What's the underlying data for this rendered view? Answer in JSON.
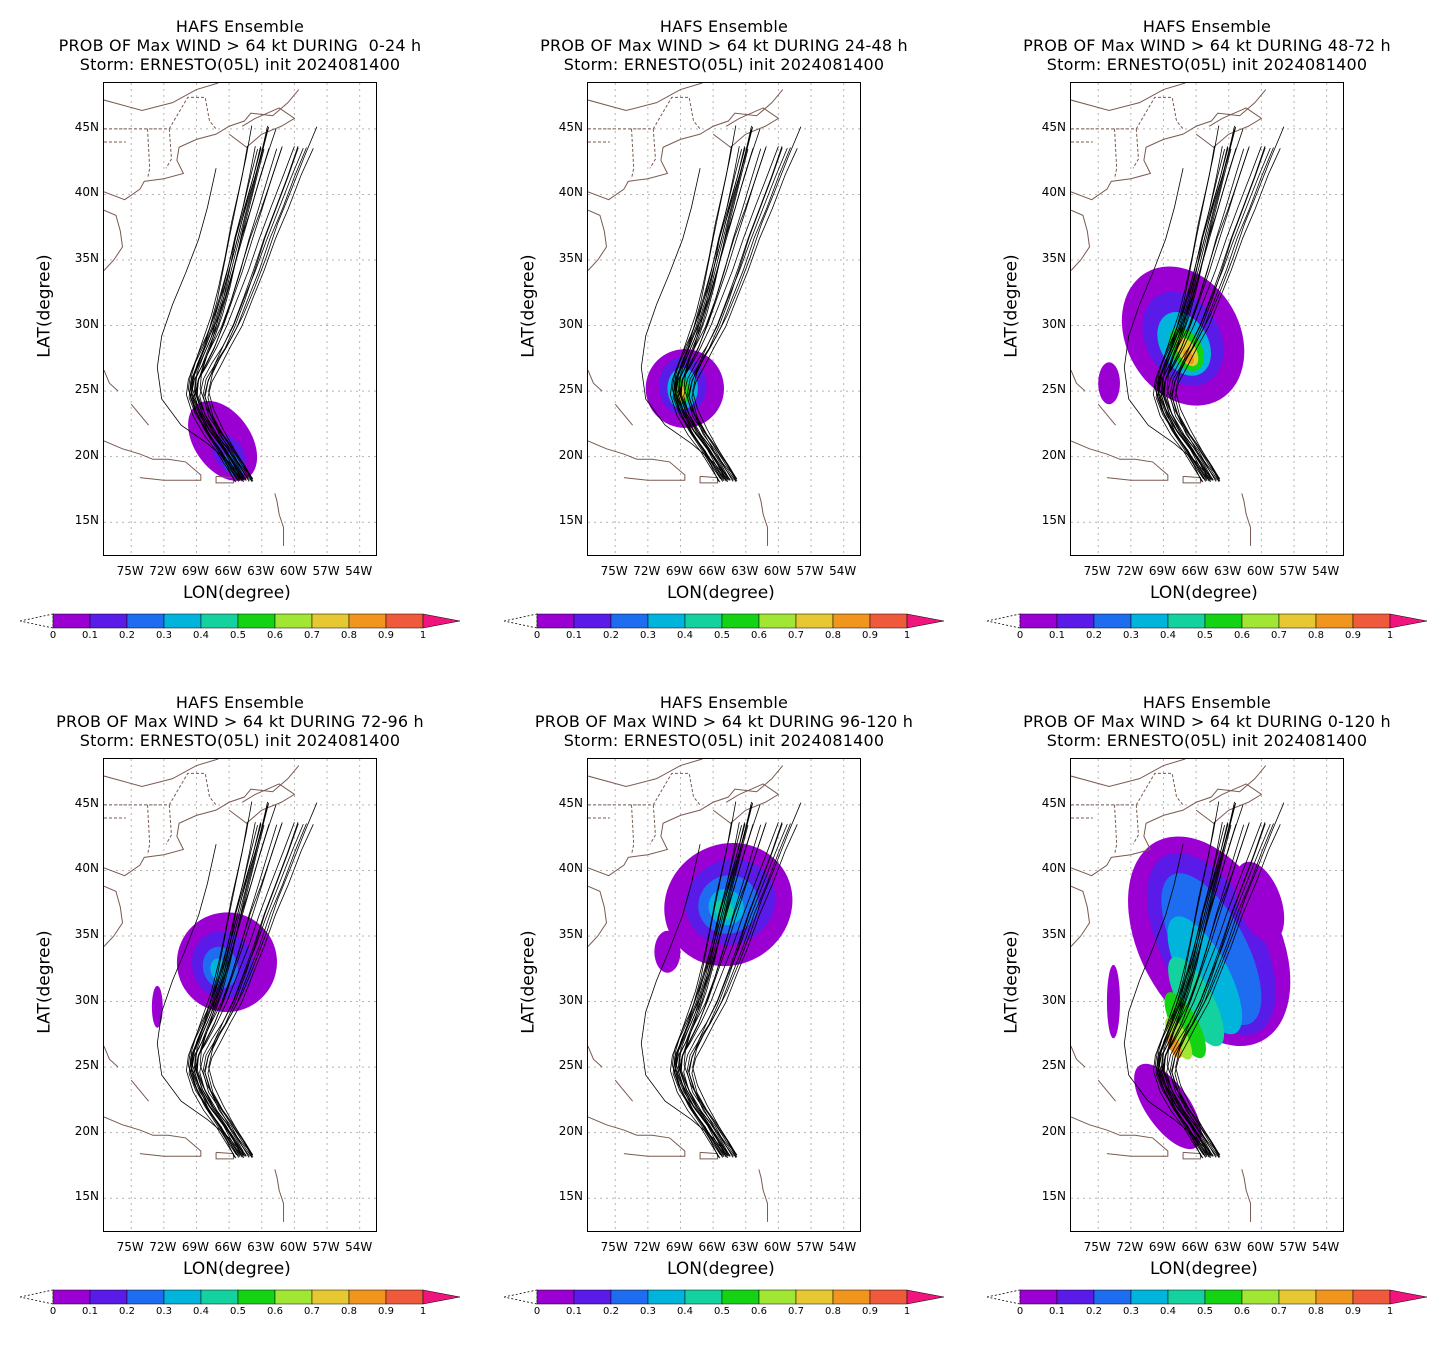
{
  "panels": [
    {
      "line1": "HAFS Ensemble",
      "line2": "PROB OF Max WIND > 64 kt DURING  0-24 h",
      "line3": "Storm: ERNESTO(05L) init 2024081400",
      "window": "0-24"
    },
    {
      "line1": "HAFS Ensemble",
      "line2": "PROB OF Max WIND > 64 kt DURING 24-48 h",
      "line3": "Storm: ERNESTO(05L) init 2024081400",
      "window": "24-48"
    },
    {
      "line1": "HAFS Ensemble",
      "line2": "PROB OF Max WIND > 64 kt DURING 48-72 h",
      "line3": "Storm: ERNESTO(05L) init 2024081400",
      "window": "48-72"
    },
    {
      "line1": "HAFS Ensemble",
      "line2": "PROB OF Max WIND > 64 kt DURING 72-96 h",
      "line3": "Storm: ERNESTO(05L) init 2024081400",
      "window": "72-96"
    },
    {
      "line1": "HAFS Ensemble",
      "line2": "PROB OF Max WIND > 64 kt DURING 96-120 h",
      "line3": "Storm: ERNESTO(05L) init 2024081400",
      "window": "96-120"
    },
    {
      "line1": "HAFS Ensemble",
      "line2": "PROB OF Max WIND > 64 kt DURING 0-120 h",
      "line3": "Storm: ERNESTO(05L) init 2024081400",
      "window": "0-120"
    }
  ],
  "axes": {
    "xlabel": "LON(degree)",
    "ylabel": "LAT(degree)",
    "lat_ticks": [
      "45N",
      "40N",
      "35N",
      "30N",
      "25N",
      "20N",
      "15N"
    ],
    "lon_ticks": [
      "75W",
      "72W",
      "69W",
      "66W",
      "63W",
      "60W",
      "57W",
      "54W"
    ],
    "lat_values": [
      45,
      40,
      35,
      30,
      25,
      20,
      15
    ],
    "lon_values": [
      -75,
      -72,
      -69,
      -66,
      -63,
      -60,
      -57,
      -54
    ],
    "lat_range": [
      12.5,
      48.5
    ],
    "lon_range": [
      -77.5,
      -52.5
    ]
  },
  "colorbar": {
    "labels": [
      "0",
      "0.1",
      "0.2",
      "0.3",
      "0.4",
      "0.5",
      "0.6",
      "0.7",
      "0.8",
      "0.9",
      "1"
    ],
    "colors": [
      "#9b00d3",
      "#5a1be8",
      "#1e6cf0",
      "#00b4dc",
      "#14d2a0",
      "#14d214",
      "#a0e632",
      "#e6c832",
      "#f0961e",
      "#f05a3c"
    ],
    "over_color": "#f0147c"
  }
}
